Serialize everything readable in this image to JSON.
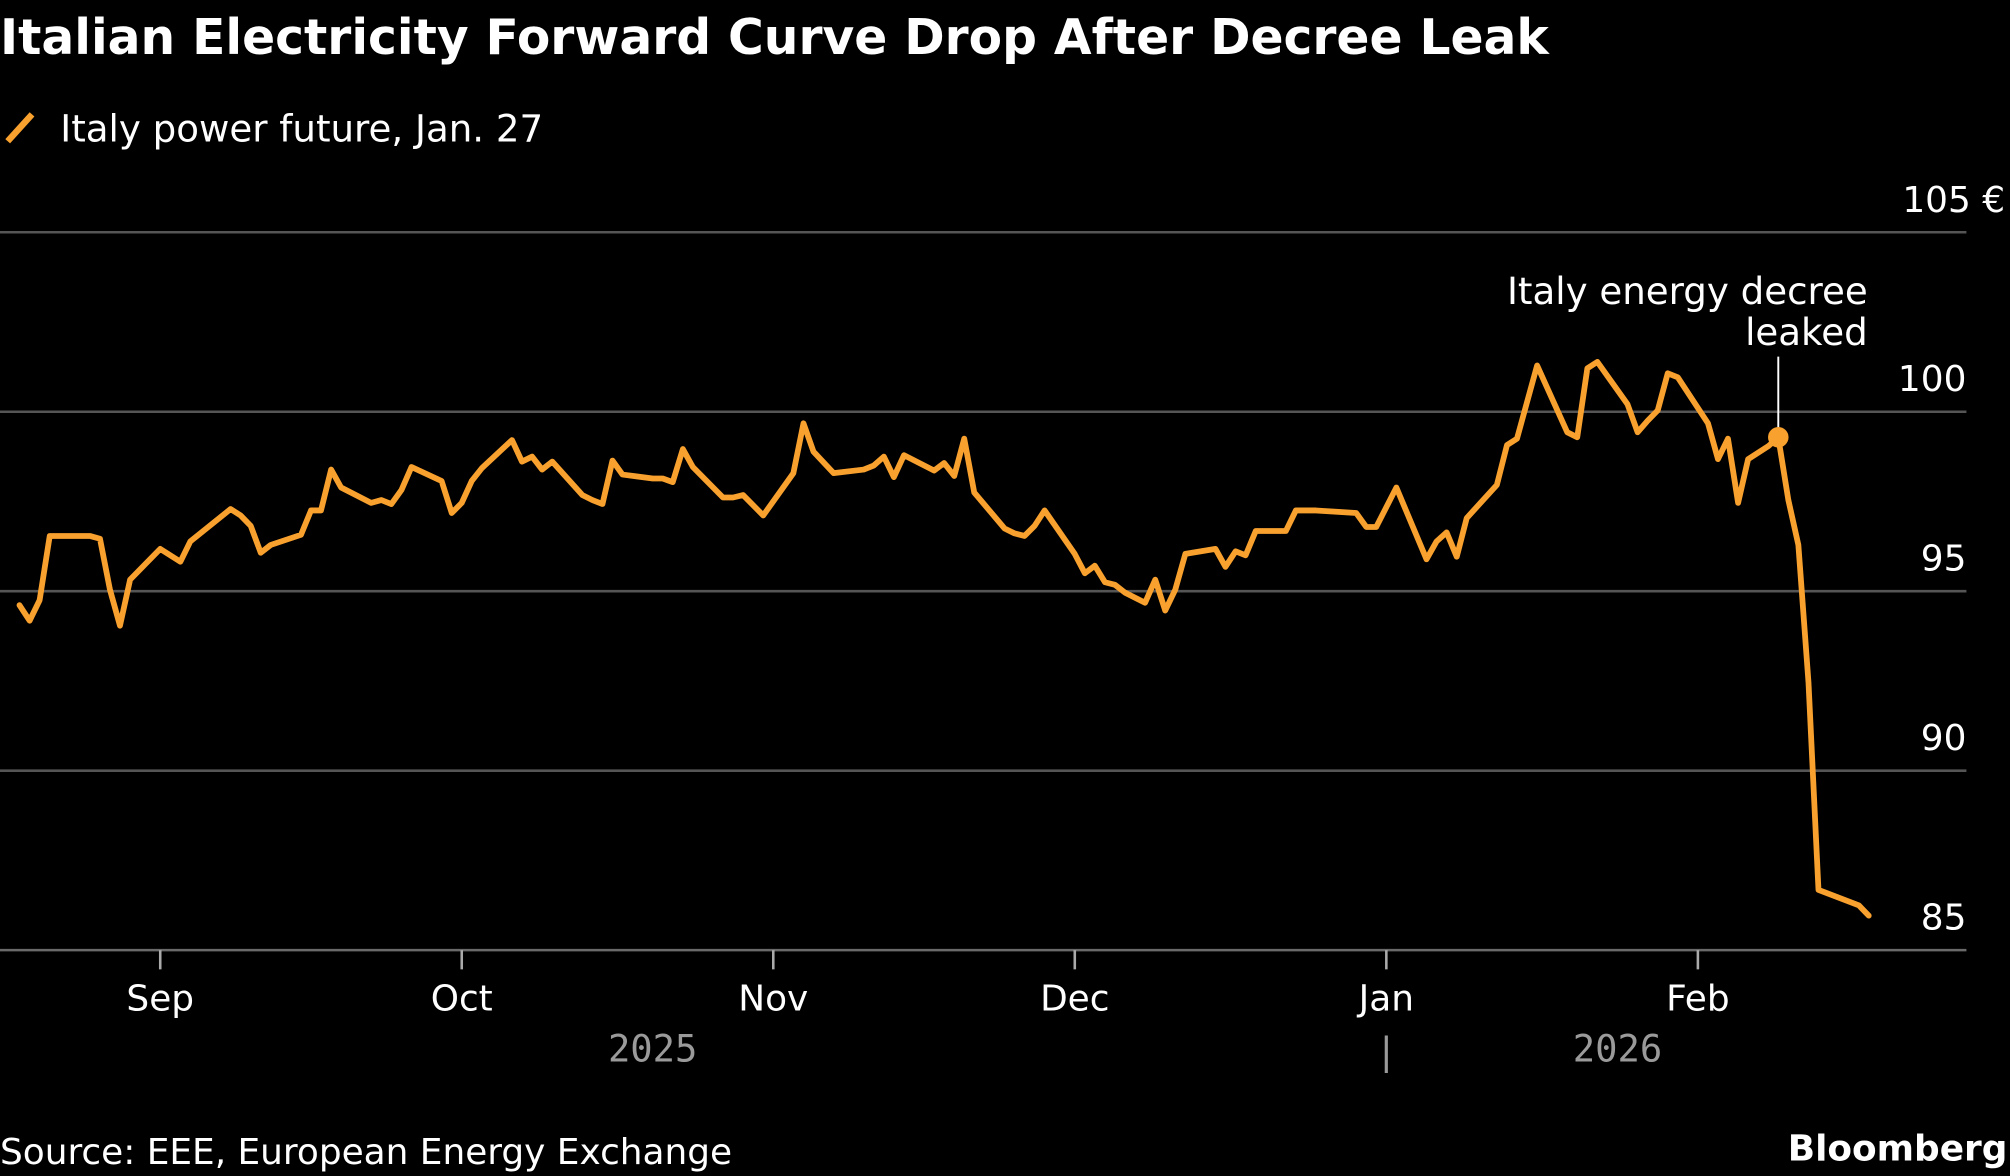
{
  "chart_data": {
    "type": "line",
    "title": "Italian Electricity Forward Curve Drop After Decree Leak",
    "legend": [
      {
        "name": "Italy power future, Jan. 27",
        "color": "#f9a12e",
        "icon": "slash-line-icon"
      }
    ],
    "legend_placement": "top-left",
    "y_unit": "€",
    "ylim": [
      85,
      105
    ],
    "yticks": [
      {
        "value": 105,
        "label": "105 €"
      },
      {
        "value": 100,
        "label": "100"
      },
      {
        "value": 95,
        "label": "95"
      },
      {
        "value": 90,
        "label": "90"
      },
      {
        "value": 85,
        "label": "85"
      }
    ],
    "y_axis_side": "right",
    "grid": true,
    "xticks": [
      {
        "date": "2025-09-01",
        "label": "Sep"
      },
      {
        "date": "2025-10-01",
        "label": "Oct"
      },
      {
        "date": "2025-11-01",
        "label": "Nov"
      },
      {
        "date": "2025-12-01",
        "label": "Dec"
      },
      {
        "date": "2026-01-01",
        "label": "Jan"
      },
      {
        "date": "2026-02-01",
        "label": "Feb"
      }
    ],
    "years": [
      {
        "label": "2025",
        "date": "2025-10-20"
      },
      {
        "label": "2026",
        "date": "2026-01-24"
      }
    ],
    "year_separator": {
      "label": "|",
      "date": "2026-01-01"
    },
    "annotation": {
      "line1": "Italy energy decree",
      "line2": "leaked",
      "date": "2026-02-09",
      "value": 99.29
    },
    "series": [
      {
        "name": "Italy power future, Jan. 27",
        "color": "#f9a12e",
        "points": [
          [
            "2025-08-18",
            94.61
          ],
          [
            "2025-08-19",
            94.18
          ],
          [
            "2025-08-20",
            94.75
          ],
          [
            "2025-08-21",
            96.54
          ],
          [
            "2025-08-25",
            96.54
          ],
          [
            "2025-08-26",
            96.46
          ],
          [
            "2025-08-27",
            95.04
          ],
          [
            "2025-08-28",
            94.04
          ],
          [
            "2025-08-29",
            95.32
          ],
          [
            "2025-09-01",
            96.18
          ],
          [
            "2025-09-03",
            95.82
          ],
          [
            "2025-09-04",
            96.39
          ],
          [
            "2025-09-08",
            97.29
          ],
          [
            "2025-09-09",
            97.11
          ],
          [
            "2025-09-10",
            96.82
          ],
          [
            "2025-09-11",
            96.07
          ],
          [
            "2025-09-12",
            96.29
          ],
          [
            "2025-09-15",
            96.57
          ],
          [
            "2025-09-16",
            97.25
          ],
          [
            "2025-09-17",
            97.25
          ],
          [
            "2025-09-18",
            98.39
          ],
          [
            "2025-09-19",
            97.89
          ],
          [
            "2025-09-22",
            97.46
          ],
          [
            "2025-09-23",
            97.54
          ],
          [
            "2025-09-24",
            97.43
          ],
          [
            "2025-09-25",
            97.82
          ],
          [
            "2025-09-26",
            98.46
          ],
          [
            "2025-09-29",
            98.07
          ],
          [
            "2025-09-30",
            97.18
          ],
          [
            "2025-10-01",
            97.46
          ],
          [
            "2025-10-02",
            98.07
          ],
          [
            "2025-10-03",
            98.43
          ],
          [
            "2025-10-06",
            99.21
          ],
          [
            "2025-10-07",
            98.61
          ],
          [
            "2025-10-08",
            98.75
          ],
          [
            "2025-10-09",
            98.39
          ],
          [
            "2025-10-10",
            98.61
          ],
          [
            "2025-10-13",
            97.68
          ],
          [
            "2025-10-14",
            97.54
          ],
          [
            "2025-10-15",
            97.43
          ],
          [
            "2025-10-16",
            98.64
          ],
          [
            "2025-10-17",
            98.25
          ],
          [
            "2025-10-20",
            98.14
          ],
          [
            "2025-10-21",
            98.14
          ],
          [
            "2025-10-22",
            98.04
          ],
          [
            "2025-10-23",
            98.96
          ],
          [
            "2025-10-24",
            98.46
          ],
          [
            "2025-10-27",
            97.61
          ],
          [
            "2025-10-28",
            97.61
          ],
          [
            "2025-10-29",
            97.68
          ],
          [
            "2025-10-31",
            97.11
          ],
          [
            "2025-11-03",
            98.29
          ],
          [
            "2025-11-04",
            99.68
          ],
          [
            "2025-11-05",
            98.89
          ],
          [
            "2025-11-07",
            98.29
          ],
          [
            "2025-11-10",
            98.39
          ],
          [
            "2025-11-11",
            98.5
          ],
          [
            "2025-11-12",
            98.75
          ],
          [
            "2025-11-13",
            98.18
          ],
          [
            "2025-11-14",
            98.79
          ],
          [
            "2025-11-17",
            98.36
          ],
          [
            "2025-11-18",
            98.57
          ],
          [
            "2025-11-19",
            98.21
          ],
          [
            "2025-11-20",
            99.25
          ],
          [
            "2025-11-21",
            97.75
          ],
          [
            "2025-11-24",
            96.75
          ],
          [
            "2025-11-25",
            96.61
          ],
          [
            "2025-11-26",
            96.54
          ],
          [
            "2025-11-27",
            96.82
          ],
          [
            "2025-11-28",
            97.25
          ],
          [
            "2025-12-01",
            96.04
          ],
          [
            "2025-12-02",
            95.5
          ],
          [
            "2025-12-03",
            95.71
          ],
          [
            "2025-12-04",
            95.25
          ],
          [
            "2025-12-05",
            95.18
          ],
          [
            "2025-12-06",
            94.96
          ],
          [
            "2025-12-08",
            94.68
          ],
          [
            "2025-12-09",
            95.32
          ],
          [
            "2025-12-10",
            94.46
          ],
          [
            "2025-12-11",
            95.04
          ],
          [
            "2025-12-12",
            96.04
          ],
          [
            "2025-12-15",
            96.18
          ],
          [
            "2025-12-16",
            95.68
          ],
          [
            "2025-12-17",
            96.11
          ],
          [
            "2025-12-18",
            96.0
          ],
          [
            "2025-12-19",
            96.68
          ],
          [
            "2025-12-22",
            96.68
          ],
          [
            "2025-12-23",
            97.25
          ],
          [
            "2025-12-25",
            97.25
          ],
          [
            "2025-12-29",
            97.18
          ],
          [
            "2025-12-30",
            96.79
          ],
          [
            "2025-12-31",
            96.79
          ],
          [
            "2026-01-02",
            97.89
          ],
          [
            "2026-01-05",
            95.89
          ],
          [
            "2026-01-06",
            96.39
          ],
          [
            "2026-01-07",
            96.64
          ],
          [
            "2026-01-08",
            95.96
          ],
          [
            "2026-01-09",
            97.04
          ],
          [
            "2026-01-12",
            97.96
          ],
          [
            "2026-01-13",
            99.07
          ],
          [
            "2026-01-14",
            99.25
          ],
          [
            "2026-01-16",
            101.29
          ],
          [
            "2026-01-19",
            99.43
          ],
          [
            "2026-01-20",
            99.29
          ],
          [
            "2026-01-21",
            101.21
          ],
          [
            "2026-01-22",
            101.39
          ],
          [
            "2026-01-25",
            100.21
          ],
          [
            "2026-01-26",
            99.43
          ],
          [
            "2026-01-27",
            99.75
          ],
          [
            "2026-01-28",
            100.04
          ],
          [
            "2026-01-29",
            101.07
          ],
          [
            "2026-01-30",
            100.96
          ],
          [
            "2026-02-02",
            99.68
          ],
          [
            "2026-02-03",
            98.68
          ],
          [
            "2026-02-04",
            99.25
          ],
          [
            "2026-02-05",
            97.46
          ],
          [
            "2026-02-06",
            98.68
          ],
          [
            "2026-02-08",
            99.04
          ],
          [
            "2026-02-09",
            99.29
          ],
          [
            "2026-02-10",
            97.54
          ],
          [
            "2026-02-11",
            96.29
          ],
          [
            "2026-02-12",
            92.46
          ],
          [
            "2026-02-13",
            86.68
          ],
          [
            "2026-02-17",
            86.25
          ],
          [
            "2026-02-18",
            85.96
          ]
        ]
      }
    ]
  },
  "footer": {
    "source": "Source: EEE, European Energy Exchange",
    "brand": "Bloomberg"
  }
}
